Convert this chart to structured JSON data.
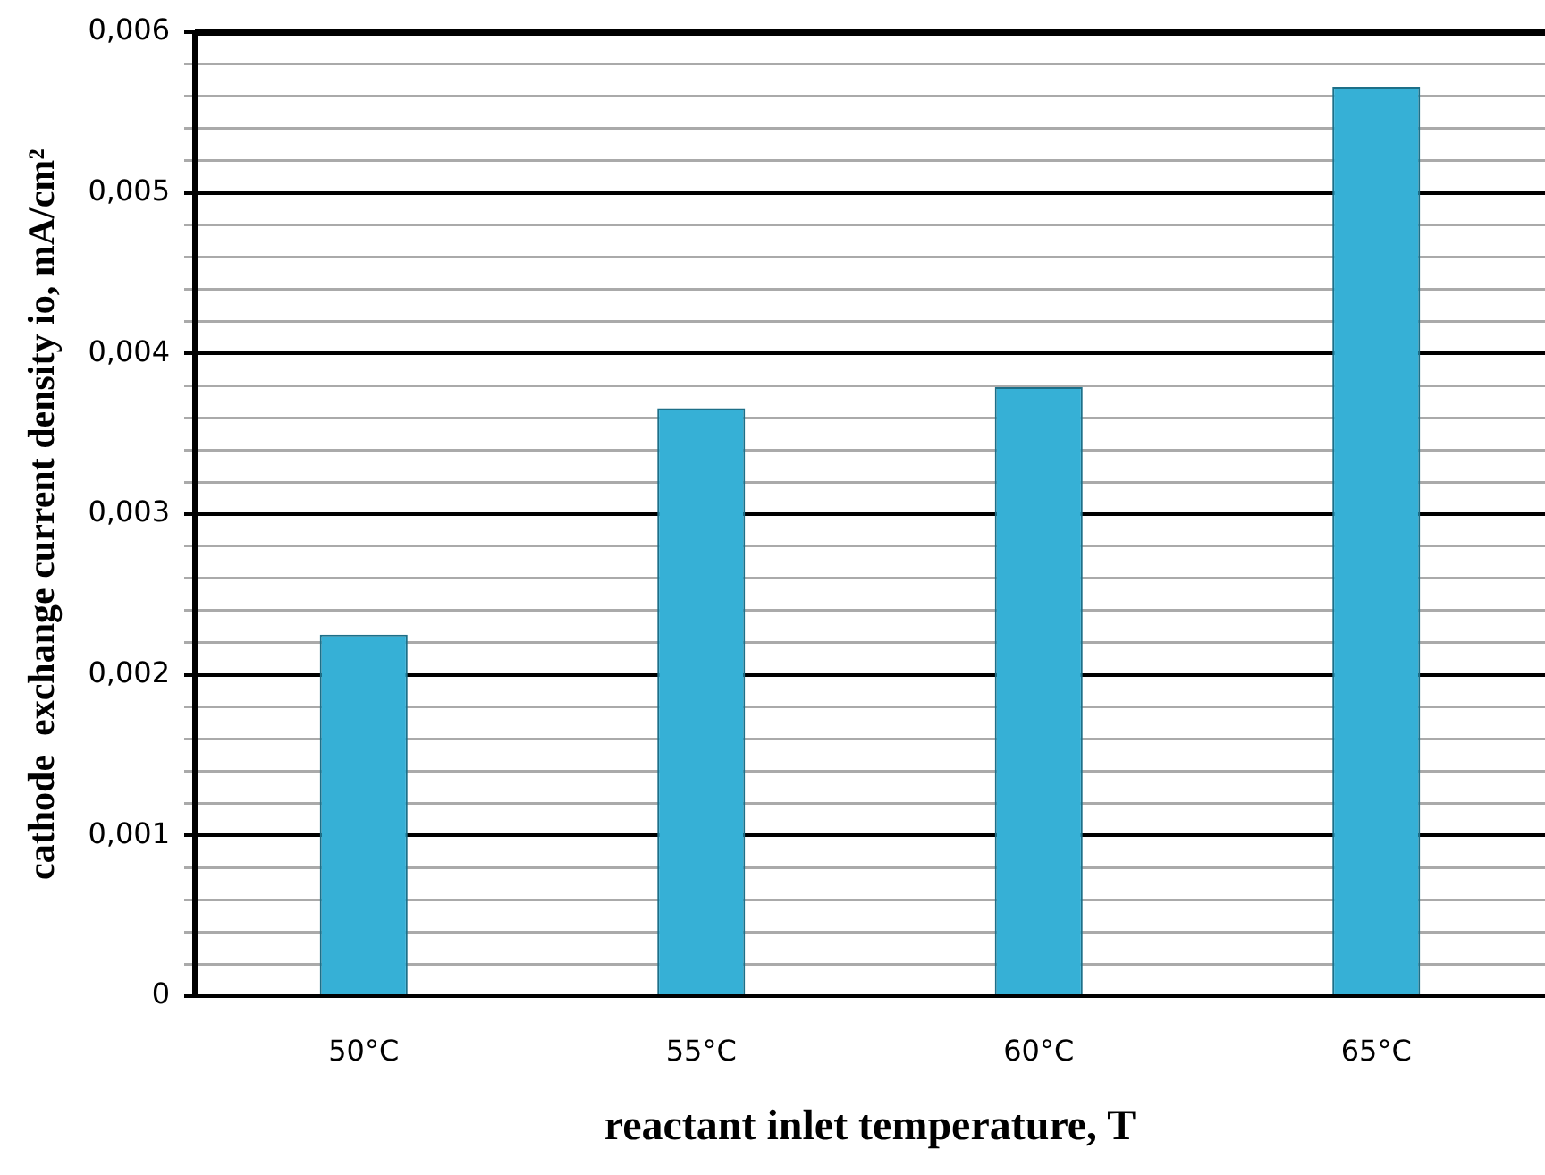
{
  "chart_data": {
    "type": "bar",
    "xlabel": "reactant inlet temperature, T",
    "ylabel": "cathode  exchange current density io, mA/cm²",
    "categories": [
      "50°C",
      "55°C",
      "60°C",
      "65°C"
    ],
    "values": [
      0.00225,
      0.00366,
      0.00379,
      0.00566
    ],
    "color": "#36b0d6",
    "ylim": [
      0,
      0.006
    ],
    "yticks": [
      {
        "value": 0,
        "label": "0"
      },
      {
        "value": 0.0002,
        "label": null
      },
      {
        "value": 0.0004,
        "label": null
      },
      {
        "value": 0.0006,
        "label": null
      },
      {
        "value": 0.0008,
        "label": null
      },
      {
        "value": 0.001,
        "label": "0,001"
      },
      {
        "value": 0.0012,
        "label": null
      },
      {
        "value": 0.0014,
        "label": null
      },
      {
        "value": 0.0016,
        "label": null
      },
      {
        "value": 0.0018,
        "label": null
      },
      {
        "value": 0.002,
        "label": "0,002"
      },
      {
        "value": 0.0022,
        "label": null
      },
      {
        "value": 0.0024,
        "label": null
      },
      {
        "value": 0.0026,
        "label": null
      },
      {
        "value": 0.0028,
        "label": null
      },
      {
        "value": 0.003,
        "label": "0,003"
      },
      {
        "value": 0.0032,
        "label": null
      },
      {
        "value": 0.0034,
        "label": null
      },
      {
        "value": 0.0036,
        "label": null
      },
      {
        "value": 0.0038,
        "label": null
      },
      {
        "value": 0.004,
        "label": "0,004"
      },
      {
        "value": 0.0042,
        "label": null
      },
      {
        "value": 0.0044,
        "label": null
      },
      {
        "value": 0.0046,
        "label": null
      },
      {
        "value": 0.0048,
        "label": null
      },
      {
        "value": 0.005,
        "label": "0,005"
      },
      {
        "value": 0.0052,
        "label": null
      },
      {
        "value": 0.0054,
        "label": null
      },
      {
        "value": 0.0056,
        "label": null
      },
      {
        "value": 0.0058,
        "label": null
      },
      {
        "value": 0.006,
        "label": "0,006"
      }
    ],
    "grid": "y",
    "legend": false
  }
}
